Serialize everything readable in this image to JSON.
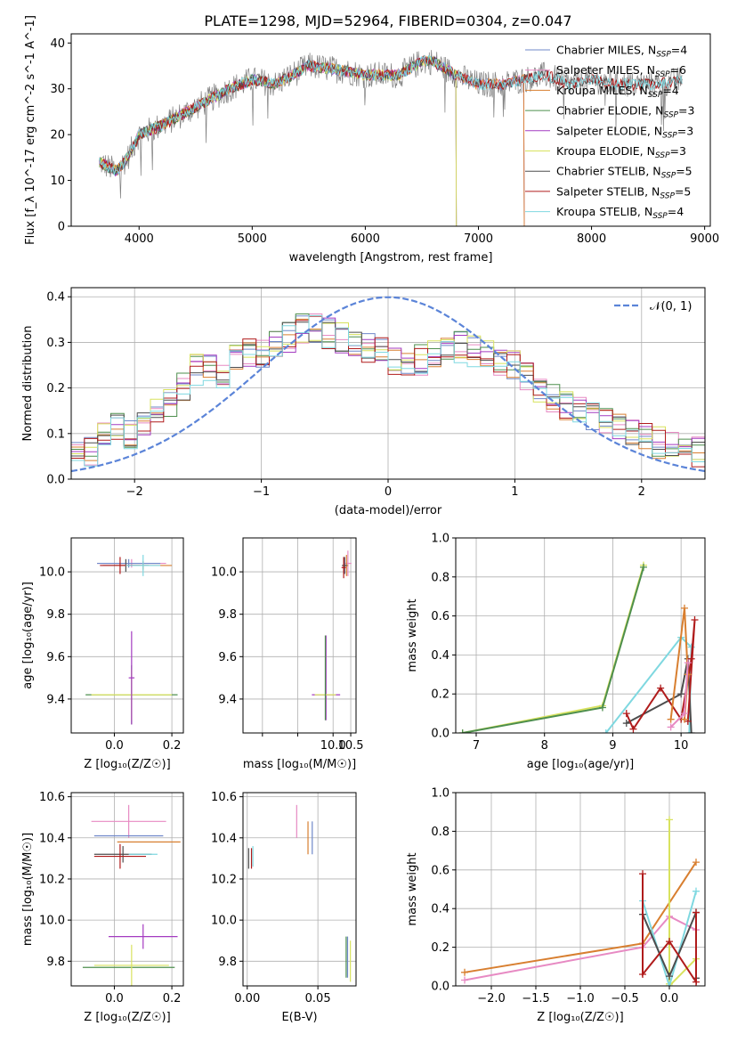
{
  "figure_title": "PLATE=1298, MJD=52964, FIBERID=0304, z=0.047",
  "chart_data": [
    {
      "type": "line",
      "id": "spectrum",
      "xlabel": "wavelength [Angstrom, rest frame]",
      "ylabel": "Flux [f_λ 10^-17 erg cm^-2 s^-1 A^-1]",
      "xlim": [
        3400,
        9050
      ],
      "ylim": [
        0,
        42
      ],
      "xticks": [
        4000,
        5000,
        6000,
        7000,
        8000,
        9000
      ],
      "yticks": [
        0,
        10,
        20,
        30,
        40
      ],
      "grid": false,
      "legend_position": "top-right",
      "continuum": {
        "x": [
          3650,
          3800,
          3900,
          4000,
          4200,
          4500,
          4800,
          5000,
          5200,
          5500,
          5800,
          6000,
          6300,
          6500,
          6600,
          6800,
          7000,
          7200,
          7400,
          7600,
          7800,
          8000,
          8200,
          8400,
          8600,
          8800
        ],
        "y": [
          14,
          12,
          15,
          20,
          22,
          26,
          30,
          32,
          31,
          35,
          34,
          33,
          33,
          36,
          36,
          33,
          31,
          31,
          32,
          33,
          31,
          32,
          31,
          31,
          31,
          32
        ]
      },
      "series": [
        {
          "name": "Chabrier MILES, N_SSP=4",
          "color": "#6f88c9",
          "x_end": 7400
        },
        {
          "name": "Salpeter MILES, N_SSP=6",
          "color": "#e78ac3",
          "x_end": 7400
        },
        {
          "name": "Kroupa MILES, N_SSP=4",
          "color": "#d87f30",
          "x_end": 7400
        },
        {
          "name": "Chabrier ELODIE, N_SSP=3",
          "color": "#4e8f4e",
          "x_end": 6800
        },
        {
          "name": "Salpeter ELODIE, N_SSP=3",
          "color": "#a43bc1",
          "x_end": 6800
        },
        {
          "name": "Kroupa ELODIE, N_SSP=3",
          "color": "#d8e25e",
          "x_end": 6800
        },
        {
          "name": "Chabrier STELIB, N_SSP=5",
          "color": "#4d4d4d",
          "x_end": 8800
        },
        {
          "name": "Salpeter STELIB, N_SSP=5",
          "color": "#b01c1c",
          "x_end": 8800
        },
        {
          "name": "Kroupa STELIB, N_SSP=4",
          "color": "#7fd8e0",
          "x_end": 8800
        }
      ],
      "data_color": "#808080"
    },
    {
      "type": "line",
      "id": "residuals",
      "xlabel": "(data-model)/error",
      "ylabel": "Normed distribution",
      "xlim": [
        -2.5,
        2.5
      ],
      "ylim": [
        0,
        0.42
      ],
      "xticks": [
        -2,
        -1,
        0,
        1,
        2
      ],
      "yticks": [
        0.0,
        0.1,
        0.2,
        0.3,
        0.4
      ],
      "grid": true,
      "legend_position": "top-right",
      "gaussian_label": "𝒩(0, 1)",
      "gaussian_color": "#5b84d8",
      "histogram_profile": [
        0.05,
        0.06,
        0.1,
        0.12,
        0.1,
        0.13,
        0.15,
        0.17,
        0.2,
        0.24,
        0.25,
        0.23,
        0.26,
        0.28,
        0.28,
        0.3,
        0.31,
        0.33,
        0.33,
        0.32,
        0.31,
        0.3,
        0.29,
        0.28,
        0.26,
        0.25,
        0.26,
        0.27,
        0.28,
        0.29,
        0.28,
        0.27,
        0.26,
        0.25,
        0.22,
        0.2,
        0.18,
        0.16,
        0.15,
        0.14,
        0.12,
        0.11,
        0.1,
        0.09,
        0.08,
        0.07,
        0.06,
        0.06
      ]
    },
    {
      "type": "scatter",
      "id": "age-vs-Z",
      "xlabel": "Z [log₁₀(Z/Z☉)]",
      "ylabel": "age  [log₁₀(age/yr)]",
      "xlim": [
        -0.15,
        0.24
      ],
      "ylim": [
        9.24,
        10.16
      ],
      "xticks": [
        0.0,
        0.2
      ],
      "yticks": [
        9.4,
        9.6,
        9.8,
        10.0
      ],
      "grid": true,
      "points": [
        {
          "x": 0.06,
          "y": 9.42,
          "ex": 0.16,
          "ey": 0.14,
          "color": "#4e8f4e"
        },
        {
          "x": 0.06,
          "y": 9.42,
          "ex": 0.14,
          "ey": 0.12,
          "color": "#d8e25e"
        },
        {
          "x": 0.06,
          "y": 9.5,
          "ex": 0.01,
          "ey": 0.22,
          "color": "#a43bc1"
        },
        {
          "x": 0.06,
          "y": 10.04,
          "ex": 0.12,
          "ey": 0.02,
          "color": "#e78ac3"
        },
        {
          "x": 0.1,
          "y": 10.03,
          "ex": 0.1,
          "ey": 0.02,
          "color": "#d87f30"
        },
        {
          "x": 0.05,
          "y": 10.04,
          "ex": 0.11,
          "ey": 0.02,
          "color": "#6f88c9"
        },
        {
          "x": 0.04,
          "y": 10.03,
          "ex": 0.08,
          "ey": 0.03,
          "color": "#4d4d4d"
        },
        {
          "x": 0.02,
          "y": 10.03,
          "ex": 0.07,
          "ey": 0.04,
          "color": "#b01c1c"
        },
        {
          "x": 0.1,
          "y": 10.03,
          "ex": 0.06,
          "ey": 0.05,
          "color": "#7fd8e0"
        }
      ]
    },
    {
      "type": "scatter",
      "id": "age-vs-mass",
      "xlabel": "mass [log₁₀(M/M☉)]",
      "ylabel": "",
      "xlim": [
        7.45,
        10.65
      ],
      "ylim": [
        9.24,
        10.16
      ],
      "xticks": [
        8,
        9,
        10,
        10.5
      ],
      "xticklabels": [
        "",
        "",
        "10.0",
        "10.5"
      ],
      "yticks": [
        9.4,
        9.6,
        9.8,
        10.0
      ],
      "grid": true,
      "points": [
        {
          "x": 9.8,
          "y": 9.42,
          "ex": 0.4,
          "ey": 0.0,
          "color": "#a43bc1"
        },
        {
          "x": 9.8,
          "y": 9.5,
          "ex": 0.0,
          "ey": 0.2,
          "color": "#a43bc1"
        },
        {
          "x": 9.78,
          "y": 9.42,
          "ex": 0.3,
          "ey": 0.0,
          "color": "#d8e25e"
        },
        {
          "x": 9.78,
          "y": 9.5,
          "ex": 0.0,
          "ey": 0.2,
          "color": "#4e8f4e"
        },
        {
          "x": 10.42,
          "y": 10.04,
          "ex": 0.1,
          "ey": 0.06,
          "color": "#e78ac3"
        },
        {
          "x": 10.38,
          "y": 10.03,
          "ex": 0.05,
          "ey": 0.05,
          "color": "#d87f30"
        },
        {
          "x": 10.33,
          "y": 10.03,
          "ex": 0.05,
          "ey": 0.04,
          "color": "#6f88c9"
        },
        {
          "x": 10.32,
          "y": 10.03,
          "ex": 0.07,
          "ey": 0.04,
          "color": "#4d4d4d"
        },
        {
          "x": 10.3,
          "y": 10.02,
          "ex": 0.06,
          "ey": 0.05,
          "color": "#b01c1c"
        }
      ]
    },
    {
      "type": "line",
      "id": "mass-weight-vs-age",
      "xlabel": "age  [log₁₀(age/yr)]",
      "ylabel": "mass weight",
      "xlim": [
        6.7,
        10.35
      ],
      "ylim": [
        0.0,
        1.0
      ],
      "xticks": [
        7,
        8,
        9,
        10
      ],
      "yticks": [
        0.0,
        0.2,
        0.4,
        0.6,
        0.8,
        1.0
      ],
      "grid": true,
      "series": [
        {
          "color": "#d8e25e",
          "x": [
            6.8,
            8.85,
            9.45
          ],
          "y": [
            0.0,
            0.14,
            0.86
          ]
        },
        {
          "color": "#4e8f4e",
          "x": [
            6.8,
            8.85,
            9.45
          ],
          "y": [
            0.0,
            0.13,
            0.85
          ]
        },
        {
          "color": "#7fd8e0",
          "x": [
            8.9,
            10.0,
            10.15,
            10.12
          ],
          "y": [
            0.0,
            0.49,
            0.44,
            0.0
          ]
        },
        {
          "color": "#4d4d4d",
          "x": [
            9.2,
            10.0,
            10.1,
            10.15
          ],
          "y": [
            0.05,
            0.2,
            0.38,
            0.0
          ]
        },
        {
          "color": "#b01c1c",
          "x": [
            9.2,
            9.3,
            9.7,
            10.0,
            10.15,
            10.2,
            10.1
          ],
          "y": [
            0.1,
            0.02,
            0.23,
            0.07,
            0.38,
            0.58,
            0.06
          ]
        },
        {
          "color": "#d87f30",
          "x": [
            9.85,
            10.05,
            10.1,
            10.05
          ],
          "y": [
            0.07,
            0.64,
            0.3,
            0.07
          ]
        },
        {
          "color": "#e78ac3",
          "x": [
            9.85,
            10.05,
            10.1
          ],
          "y": [
            0.03,
            0.1,
            0.36
          ]
        }
      ]
    },
    {
      "type": "scatter",
      "id": "mass-vs-Z",
      "xlabel": "Z [log₁₀(Z/Z☉)]",
      "ylabel": "mass [log₁₀(M/M☉)]",
      "xlim": [
        -0.15,
        0.24
      ],
      "ylim": [
        9.68,
        10.62
      ],
      "xticks": [
        0.0,
        0.2
      ],
      "yticks": [
        9.8,
        10.0,
        10.2,
        10.4,
        10.6
      ],
      "grid": true,
      "points": [
        {
          "x": 0.05,
          "y": 9.77,
          "ex": 0.16,
          "ey": 0.0,
          "color": "#4e8f4e"
        },
        {
          "x": 0.06,
          "y": 9.78,
          "ex": 0.13,
          "ey": 0.1,
          "color": "#d8e25e"
        },
        {
          "x": 0.1,
          "y": 9.92,
          "ex": 0.12,
          "ey": 0.06,
          "color": "#a43bc1"
        },
        {
          "x": 0.05,
          "y": 10.48,
          "ex": 0.13,
          "ey": 0.08,
          "color": "#e78ac3"
        },
        {
          "x": 0.12,
          "y": 10.38,
          "ex": 0.11,
          "ey": 0.0,
          "color": "#d87f30"
        },
        {
          "x": 0.05,
          "y": 10.41,
          "ex": 0.12,
          "ey": 0.0,
          "color": "#6f88c9"
        },
        {
          "x": 0.03,
          "y": 10.32,
          "ex": 0.1,
          "ey": 0.04,
          "color": "#4d4d4d"
        },
        {
          "x": 0.02,
          "y": 10.31,
          "ex": 0.09,
          "ey": 0.06,
          "color": "#b01c1c"
        },
        {
          "x": 0.1,
          "y": 10.32,
          "ex": 0.05,
          "ey": 0.0,
          "color": "#7fd8e0"
        }
      ]
    },
    {
      "type": "scatter",
      "id": "mass-vs-ebv",
      "xlabel": "E(B-V)",
      "ylabel": "",
      "xlim": [
        -0.003,
        0.077
      ],
      "ylim": [
        9.68,
        10.62
      ],
      "xticks": [
        0.0,
        0.05
      ],
      "xticklabels": [
        "0.00",
        "0.05"
      ],
      "yticks": [
        9.8,
        10.0,
        10.2,
        10.4,
        10.6
      ],
      "grid": true,
      "points": [
        {
          "x": 0.035,
          "y": 10.48,
          "ex": 0.0,
          "ey": 0.08,
          "color": "#e78ac3"
        },
        {
          "x": 0.043,
          "y": 10.4,
          "ex": 0.0,
          "ey": 0.08,
          "color": "#d87f30"
        },
        {
          "x": 0.046,
          "y": 10.4,
          "ex": 0.0,
          "ey": 0.08,
          "color": "#6f88c9"
        },
        {
          "x": 0.001,
          "y": 10.3,
          "ex": 0.0,
          "ey": 0.05,
          "color": "#4d4d4d"
        },
        {
          "x": 0.003,
          "y": 10.3,
          "ex": 0.0,
          "ey": 0.05,
          "color": "#b01c1c"
        },
        {
          "x": 0.004,
          "y": 10.31,
          "ex": 0.0,
          "ey": 0.05,
          "color": "#7fd8e0"
        },
        {
          "x": 0.07,
          "y": 9.82,
          "ex": 0.0,
          "ey": 0.1,
          "color": "#4e8f4e"
        },
        {
          "x": 0.071,
          "y": 9.82,
          "ex": 0.0,
          "ey": 0.1,
          "color": "#6f88c9"
        },
        {
          "x": 0.073,
          "y": 9.8,
          "ex": 0.0,
          "ey": 0.1,
          "color": "#d8e25e"
        }
      ]
    },
    {
      "type": "line",
      "id": "mass-weight-vs-Z",
      "xlabel": "Z [log₁₀(Z/Z☉)]",
      "ylabel": "mass weight",
      "xlim": [
        -2.4,
        0.4
      ],
      "ylim": [
        0.0,
        1.0
      ],
      "xticks": [
        -2.0,
        -1.5,
        -1.0,
        -0.5,
        0.0
      ],
      "yticks": [
        0.0,
        0.2,
        0.4,
        0.6,
        0.8,
        1.0
      ],
      "grid": true,
      "series": [
        {
          "color": "#d87f30",
          "x": [
            -2.3,
            -0.3,
            0.3
          ],
          "y": [
            0.07,
            0.22,
            0.64
          ]
        },
        {
          "color": "#e78ac3",
          "x": [
            -2.3,
            -0.3,
            0.0,
            0.3
          ],
          "y": [
            0.03,
            0.2,
            0.36,
            0.29
          ]
        },
        {
          "color": "#d8e25e",
          "x": [
            0.0,
            0.0,
            0.0,
            0.3
          ],
          "y": [
            0.86,
            0.01,
            0.0,
            0.14
          ]
        },
        {
          "color": "#7fd8e0",
          "x": [
            -0.3,
            0.0,
            0.3
          ],
          "y": [
            0.44,
            0.0,
            0.49
          ]
        },
        {
          "color": "#4d4d4d",
          "x": [
            -0.3,
            0.0,
            0.3,
            0.3
          ],
          "y": [
            0.37,
            0.05,
            0.38,
            0.04
          ]
        },
        {
          "color": "#b01c1c",
          "x": [
            -0.3,
            -0.3,
            0.0,
            0.3,
            0.3
          ],
          "y": [
            0.58,
            0.06,
            0.23,
            0.02,
            0.38
          ]
        }
      ]
    }
  ]
}
